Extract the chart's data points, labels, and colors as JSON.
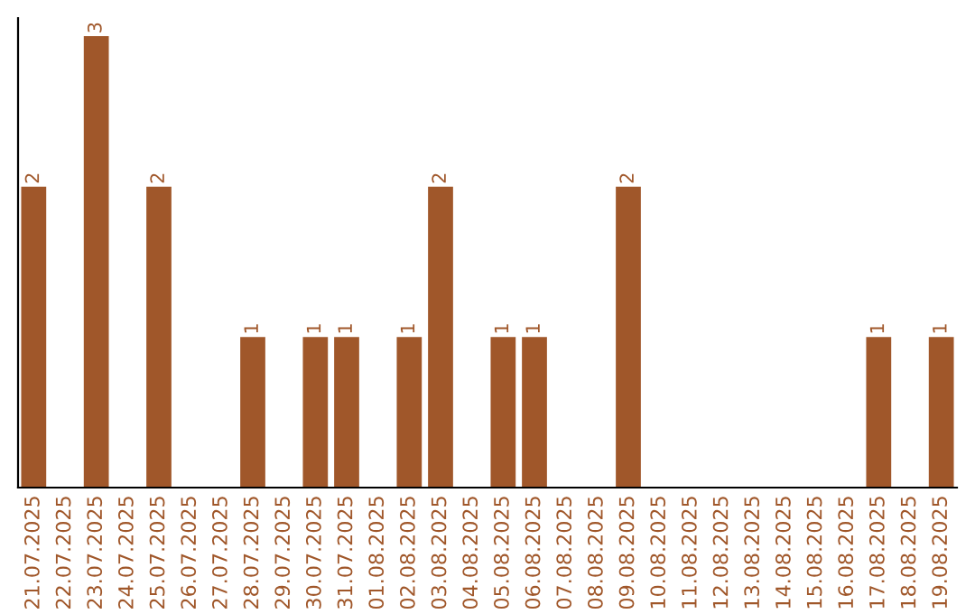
{
  "chart_data": {
    "type": "bar",
    "categories": [
      "21.07.2025",
      "22.07.2025",
      "23.07.2025",
      "24.07.2025",
      "25.07.2025",
      "26.07.2025",
      "27.07.2025",
      "28.07.2025",
      "29.07.2025",
      "30.07.2025",
      "31.07.2025",
      "01.08.2025",
      "02.08.2025",
      "03.08.2025",
      "04.08.2025",
      "05.08.2025",
      "06.08.2025",
      "07.08.2025",
      "08.08.2025",
      "09.08.2025",
      "10.08.2025",
      "11.08.2025",
      "12.08.2025",
      "13.08.2025",
      "14.08.2025",
      "15.08.2025",
      "16.08.2025",
      "17.08.2025",
      "18.08.2025",
      "19.08.2025"
    ],
    "values": [
      2,
      0,
      3,
      0,
      2,
      0,
      0,
      1,
      0,
      1,
      1,
      0,
      1,
      2,
      0,
      1,
      1,
      0,
      0,
      2,
      0,
      0,
      0,
      0,
      0,
      0,
      0,
      1,
      0,
      1
    ],
    "value_labels": [
      "2",
      null,
      "3",
      null,
      "2",
      null,
      null,
      "1",
      null,
      "1",
      "1",
      null,
      "1",
      "2",
      null,
      "1",
      "1",
      null,
      null,
      "2",
      null,
      null,
      null,
      null,
      null,
      null,
      null,
      "1",
      null,
      "1"
    ],
    "color": "#a0572a",
    "ylim": [
      0,
      3.12
    ],
    "tick_labels": "x",
    "grid": false,
    "legend": false
  }
}
